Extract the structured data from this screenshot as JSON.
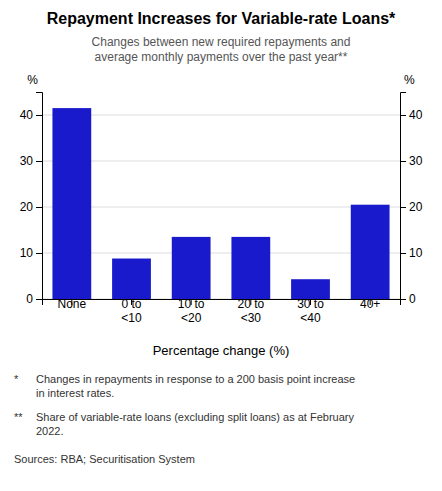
{
  "chart_data": {
    "type": "bar",
    "title": "Repayment Increases for Variable-rate Loans*",
    "subtitle": "Changes between new required repayments and\naverage monthly payments over the past year**",
    "categories": [
      "None",
      "0 to\n<10",
      "10 to\n<20",
      "20 to\n<30",
      "30 to\n<40",
      "40+"
    ],
    "values": [
      41.5,
      8.8,
      13.5,
      13.5,
      4.3,
      20.5
    ],
    "color": "#1a1acd",
    "xlabel": "Percentage change (%)",
    "ylabel": "%",
    "y2label": "%",
    "ylim": [
      0,
      45
    ],
    "yticks": [
      0,
      10,
      20,
      30,
      40
    ],
    "y2lim": [
      0,
      45
    ],
    "y2ticks": [
      0,
      10,
      20,
      30,
      40
    ],
    "grid": true,
    "footnotes": [
      {
        "symbol": "*",
        "text": "Changes in repayments in response to a 200 basis point increase\nin interest rates."
      },
      {
        "symbol": "**",
        "text": "Share of variable-rate loans (excluding split loans) as at February\n2022."
      }
    ],
    "source": "Sources: RBA; Securitisation System"
  }
}
